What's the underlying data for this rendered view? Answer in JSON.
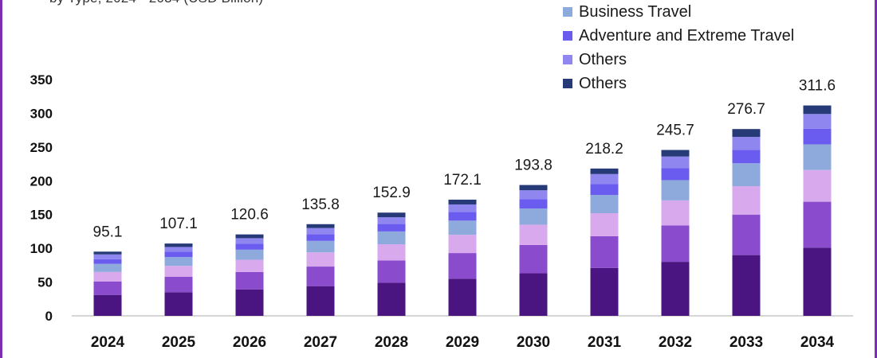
{
  "colors": {
    "frame": "#7b2fb5",
    "axis": "#bdbdbd"
  },
  "header": {
    "subtitle_fragment": "by Type, 2024 - 2034 (USD Billion)"
  },
  "legend": {
    "items": [
      {
        "label": "Business Travel",
        "color": "#8ea9dc"
      },
      {
        "label": "Adventure and Extreme Travel",
        "color": "#6b5cf0"
      },
      {
        "label": "Others",
        "color": "#8f86f0"
      },
      {
        "label": "Others",
        "color": "#263a78"
      }
    ]
  },
  "chart_data": {
    "type": "bar",
    "stacked": true,
    "categories": [
      "2024",
      "2025",
      "2026",
      "2027",
      "2028",
      "2029",
      "2030",
      "2031",
      "2032",
      "2033",
      "2034"
    ],
    "totals": [
      95.1,
      107.1,
      120.6,
      135.8,
      152.9,
      172.1,
      193.8,
      218.2,
      245.7,
      276.7,
      311.6
    ],
    "total_labels": [
      "95.1",
      "107.1",
      "120.6",
      "135.8",
      "152.9",
      "172.1",
      "193.8",
      "218.2",
      "245.7",
      "276.7",
      "311.6"
    ],
    "series": [
      {
        "color": "#4a1580",
        "values": [
          31,
          35,
          39,
          44,
          49,
          55,
          63,
          71,
          80,
          90,
          101
        ]
      },
      {
        "color": "#8a4ccc",
        "values": [
          20,
          23,
          26,
          29,
          33,
          38,
          42,
          47,
          54,
          60,
          68
        ]
      },
      {
        "color": "#d9a9ee",
        "values": [
          14,
          16,
          18,
          21,
          24,
          27,
          30,
          34,
          37,
          42,
          47
        ]
      },
      {
        "color": "#8ea9dc",
        "values": [
          12,
          13,
          15,
          17,
          19,
          21,
          24,
          27,
          30,
          34,
          38
        ]
      },
      {
        "color": "#6b5cf0",
        "values": [
          7,
          8,
          9,
          10,
          11,
          13,
          14,
          16,
          18,
          20,
          23
        ]
      },
      {
        "color": "#8f86f0",
        "values": [
          7,
          7,
          8,
          9,
          10,
          11,
          13,
          15,
          17,
          19,
          22
        ]
      },
      {
        "color": "#263a78",
        "values": [
          4.1,
          5.1,
          5.6,
          5.8,
          6.9,
          7.1,
          7.8,
          8.2,
          9.7,
          11.7,
          12.6
        ]
      }
    ],
    "y_ticks": [
      "0",
      "50",
      "100",
      "150",
      "200",
      "250",
      "300",
      "350"
    ],
    "ylim": [
      0,
      350
    ],
    "grid": false,
    "legend_position": "top-right"
  }
}
